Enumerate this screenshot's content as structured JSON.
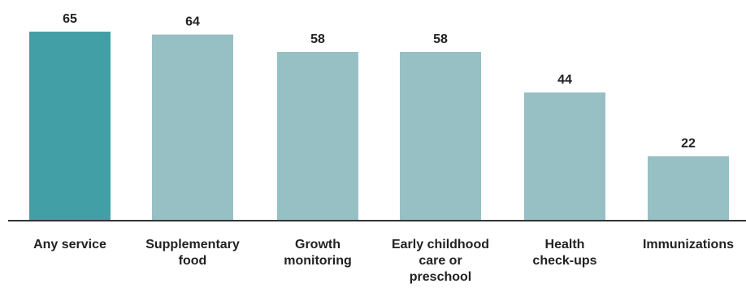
{
  "chart_data": {
    "type": "bar",
    "categories": [
      "Any service",
      "Supplementary food",
      "Growth monitoring",
      "Early childhood care or preschool",
      "Health check-ups",
      "Immunizations"
    ],
    "category_lines": [
      [
        "Any service"
      ],
      [
        "Supplementary",
        "food"
      ],
      [
        "Growth",
        "monitoring"
      ],
      [
        "Early childhood",
        "care or",
        "preschool"
      ],
      [
        "Health",
        "check-ups"
      ],
      [
        "Immunizations"
      ]
    ],
    "values": [
      65,
      64,
      58,
      58,
      44,
      22
    ],
    "value_labels": [
      "65",
      "64",
      "58",
      "58",
      "44",
      "22"
    ],
    "title": "",
    "xlabel": "",
    "ylabel": "",
    "ylim": [
      0,
      65
    ],
    "grid": false,
    "legend": "none",
    "colors": {
      "highlight": "#439fa6",
      "bar": "#97c0c5",
      "axis": "#333333",
      "text": "#222222"
    },
    "highlight_index": 0
  }
}
